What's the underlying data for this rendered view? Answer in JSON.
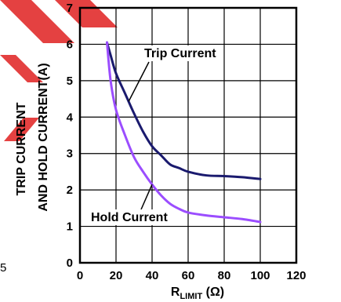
{
  "chart_data": {
    "type": "line",
    "title": "",
    "xlabel": {
      "main": "R",
      "sub": "LIMIT",
      "unit": "(Ω)"
    },
    "ylabel": [
      "TRIP CURRENT",
      "AND HOLD CURRENT(A)"
    ],
    "xlim": [
      0,
      120
    ],
    "ylim": [
      0,
      7
    ],
    "x_ticks": [
      "0",
      "20",
      "40",
      "60",
      "80",
      "100",
      "120"
    ],
    "y_ticks": [
      "0",
      "1",
      "2",
      "3",
      "4",
      "5",
      "6",
      "7"
    ],
    "grid": true,
    "left_margin_fragment": "5",
    "series": [
      {
        "name": "Trip Current",
        "color": "#1a1a6e",
        "x": [
          15,
          17,
          20,
          25,
          30,
          35,
          40,
          45,
          50,
          55,
          60,
          70,
          80,
          90,
          100
        ],
        "y": [
          6.05,
          5.7,
          5.2,
          4.65,
          4.1,
          3.6,
          3.2,
          2.95,
          2.7,
          2.6,
          2.5,
          2.4,
          2.38,
          2.35,
          2.3
        ]
      },
      {
        "name": "Hold Current",
        "color": "#9b4dff",
        "x": [
          15,
          17,
          20,
          25,
          30,
          35,
          40,
          45,
          50,
          55,
          60,
          70,
          80,
          90,
          100
        ],
        "y": [
          6.05,
          5.0,
          4.2,
          3.5,
          2.9,
          2.5,
          2.15,
          1.85,
          1.62,
          1.48,
          1.38,
          1.3,
          1.25,
          1.2,
          1.12
        ]
      }
    ],
    "annotations": [
      {
        "text": "Trip Current",
        "series": "Trip Current",
        "point_x": 27
      },
      {
        "text": "Hold Current",
        "series": "Hold Current",
        "point_x": 40
      }
    ]
  },
  "colors": {
    "axis": "#000000",
    "grid": "#000000",
    "watermark": "#e02020"
  }
}
